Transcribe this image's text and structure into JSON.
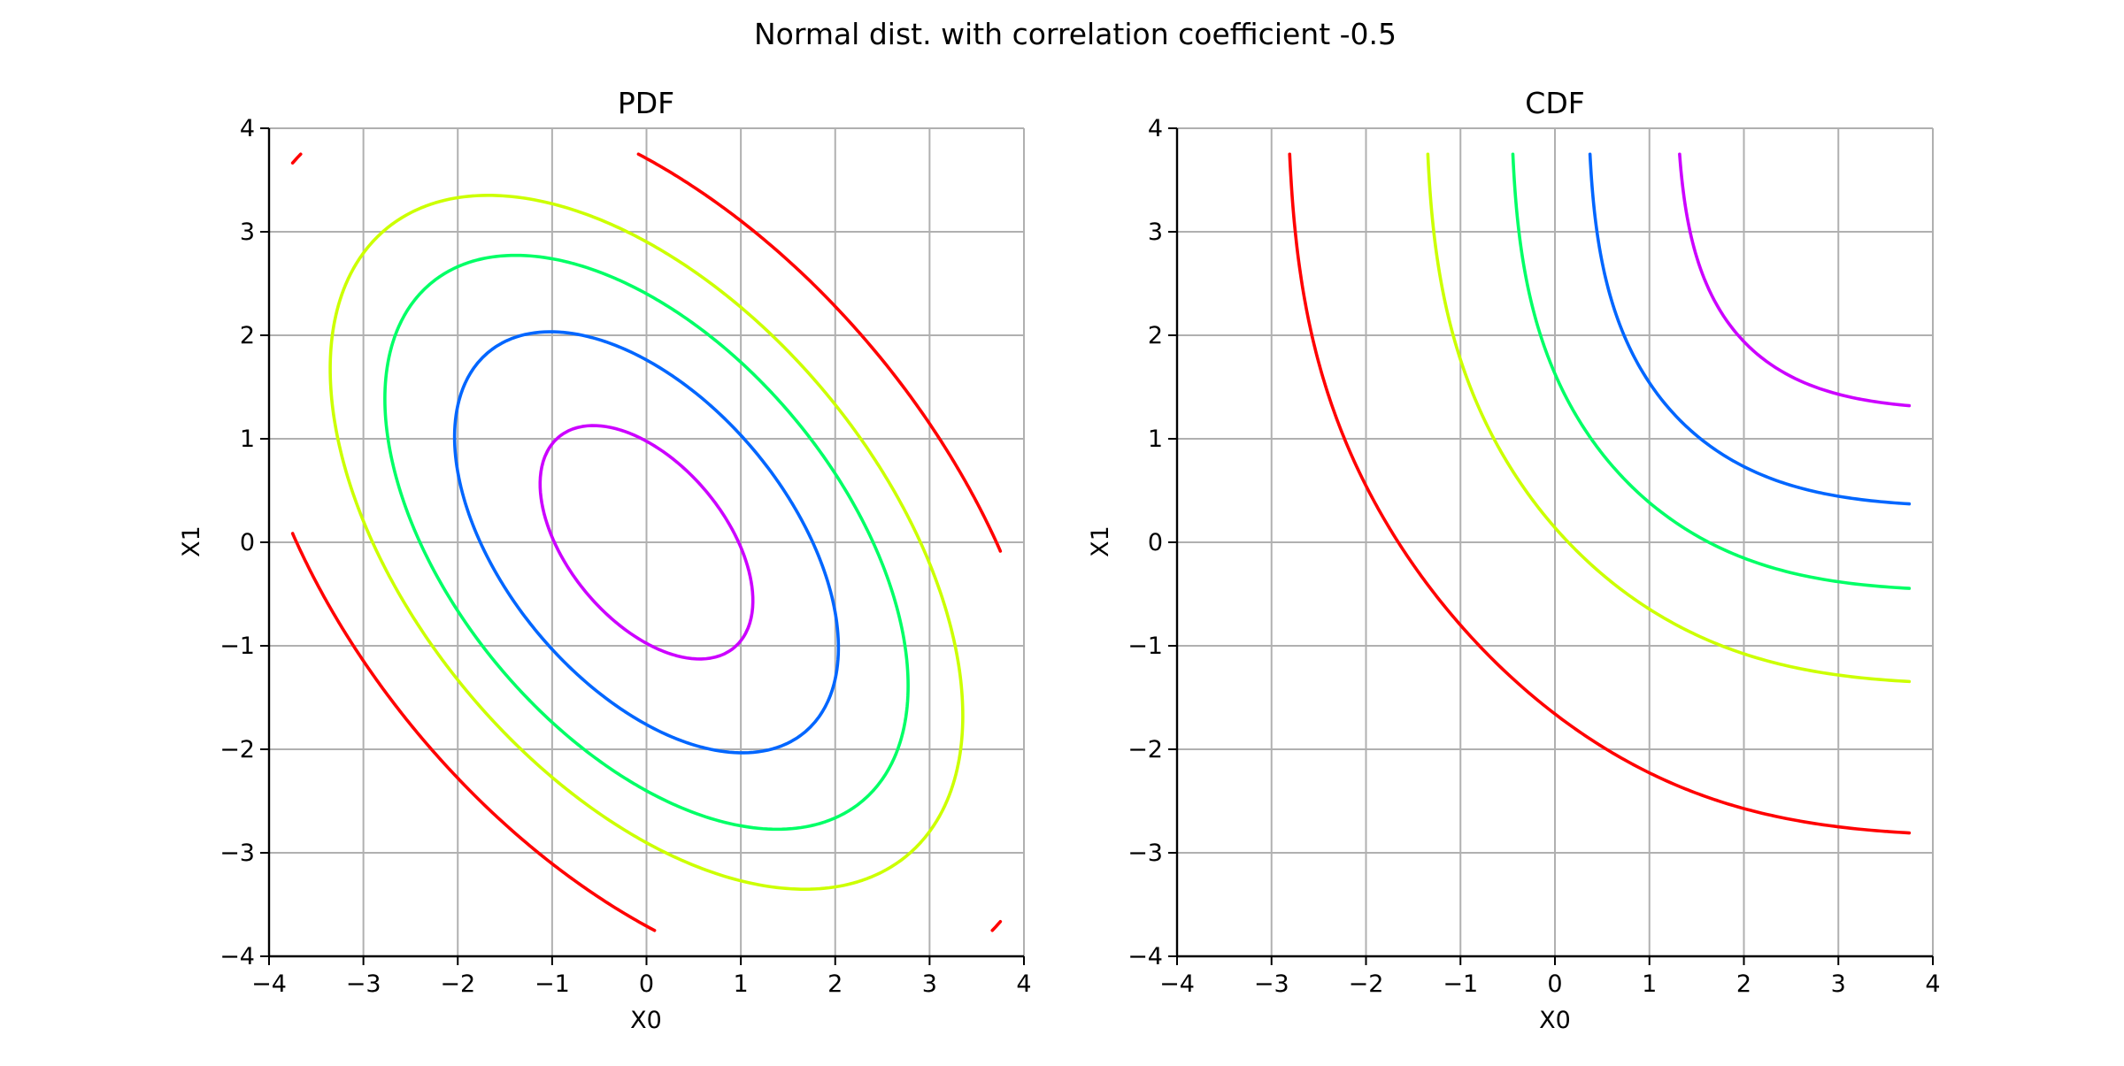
{
  "chart_data": {
    "type": "contour",
    "title": "Normal dist. with correlation coefficient -0.5",
    "distribution": {
      "mean": [
        0,
        0
      ],
      "std": [
        1.6,
        1.6
      ],
      "rho": -0.5
    },
    "range": [
      -3.75,
      3.75
    ],
    "colors": [
      "#ff0000",
      "#ccff00",
      "#00ff66",
      "#0066ff",
      "#cc00ff"
    ],
    "subplots": [
      {
        "kind": "pdf",
        "title": "PDF",
        "xlabel": "X0",
        "ylabel": "X1",
        "xlim": [
          -4,
          4
        ],
        "ylim": [
          -4,
          4
        ],
        "grid": true,
        "xticks": [
          -4,
          -3,
          -2,
          -1,
          0,
          1,
          2,
          3,
          4
        ],
        "yticks": [
          -4,
          -3,
          -2,
          -1,
          0,
          1,
          2,
          3,
          4
        ],
        "xtick_labels": [
          "−4",
          "−3",
          "−2",
          "−1",
          "0",
          "1",
          "2",
          "3",
          "4"
        ],
        "ytick_labels": [
          "−4",
          "−3",
          "−2",
          "−1",
          "0",
          "1",
          "2",
          "3",
          "4"
        ],
        "contour_levels": [
          0.002,
          0.008,
          0.016,
          0.032,
          0.056
        ]
      },
      {
        "kind": "cdf",
        "title": "CDF",
        "xlabel": "X0",
        "ylabel": "X1",
        "xlim": [
          -4,
          4
        ],
        "ylim": [
          -4,
          4
        ],
        "grid": true,
        "xticks": [
          -4,
          -3,
          -2,
          -1,
          0,
          1,
          2,
          3,
          4
        ],
        "yticks": [
          -4,
          -3,
          -2,
          -1,
          0,
          1,
          2,
          3,
          4
        ],
        "xtick_labels": [
          "−4",
          "−3",
          "−2",
          "−1",
          "0",
          "1",
          "2",
          "3",
          "4"
        ],
        "ytick_labels": [
          "−4",
          "−3",
          "−2",
          "−1",
          "0",
          "1",
          "2",
          "3",
          "4"
        ],
        "contour_levels": [
          0.03,
          0.19,
          0.38,
          0.58,
          0.78
        ]
      }
    ]
  }
}
